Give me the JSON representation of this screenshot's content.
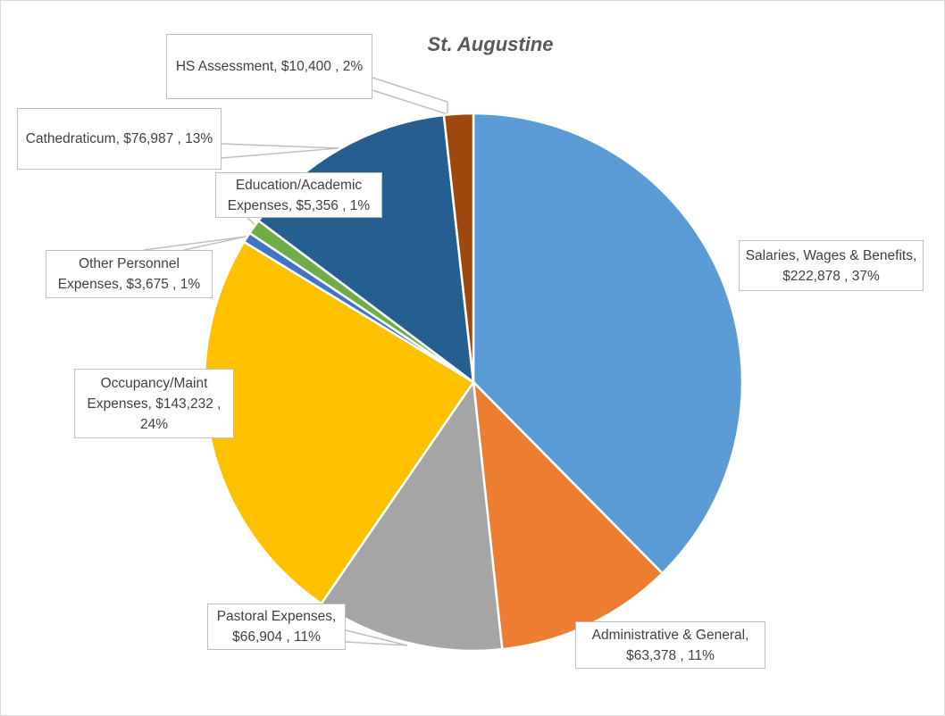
{
  "chart_data": {
    "type": "pie",
    "title": "St. Augustine",
    "start_angle": "12 o'clock, clockwise",
    "slices": [
      {
        "label": "Salaries, Wages & Benefits",
        "value": 222878,
        "value_text": "$222,878",
        "percent": "37%",
        "color": "#5B9BD5"
      },
      {
        "label": "Administrative & General",
        "value": 63378,
        "value_text": "$63,378",
        "percent": "11%",
        "color": "#ED7D31"
      },
      {
        "label": "Pastoral Expenses",
        "value": 66904,
        "value_text": "$66,904",
        "percent": "11%",
        "color": "#A5A5A5"
      },
      {
        "label": "Occupancy/Maint Expenses",
        "value": 143232,
        "value_text": "$143,232",
        "percent": "24%",
        "color": "#FFC000"
      },
      {
        "label": "Other Personnel Expenses",
        "value": 3675,
        "value_text": "$3,675",
        "percent": "1%",
        "color": "#4472C4"
      },
      {
        "label": "Education/Academic Expenses",
        "value": 5356,
        "value_text": "$5,356",
        "percent": "1%",
        "color": "#70AD47"
      },
      {
        "label": "Cathedraticum",
        "value": 76987,
        "value_text": "$76,987",
        "percent": "13%",
        "color": "#255E91"
      },
      {
        "label": "HS Assessment",
        "value": 10400,
        "value_text": "$10,400",
        "percent": "2%",
        "color": "#9E480E"
      }
    ]
  },
  "labels": {
    "salaries": "Salaries, Wages & Benefits,  $222,878 , 37%",
    "admin": "Administrative & General, $63,378 , 11%",
    "pastoral": "Pastoral Expenses, $66,904 , 11%",
    "occupancy": "Occupancy/Maint Expenses,  $143,232 , 24%",
    "other": "Other Personnel Expenses,  $3,675 , 1%",
    "education": "Education/Academic Expenses,  $5,356 , 1%",
    "cathedraticum": "Cathedraticum,  $76,987 , 13%",
    "hs": "HS Assessment,  $10,400 , 2%"
  }
}
